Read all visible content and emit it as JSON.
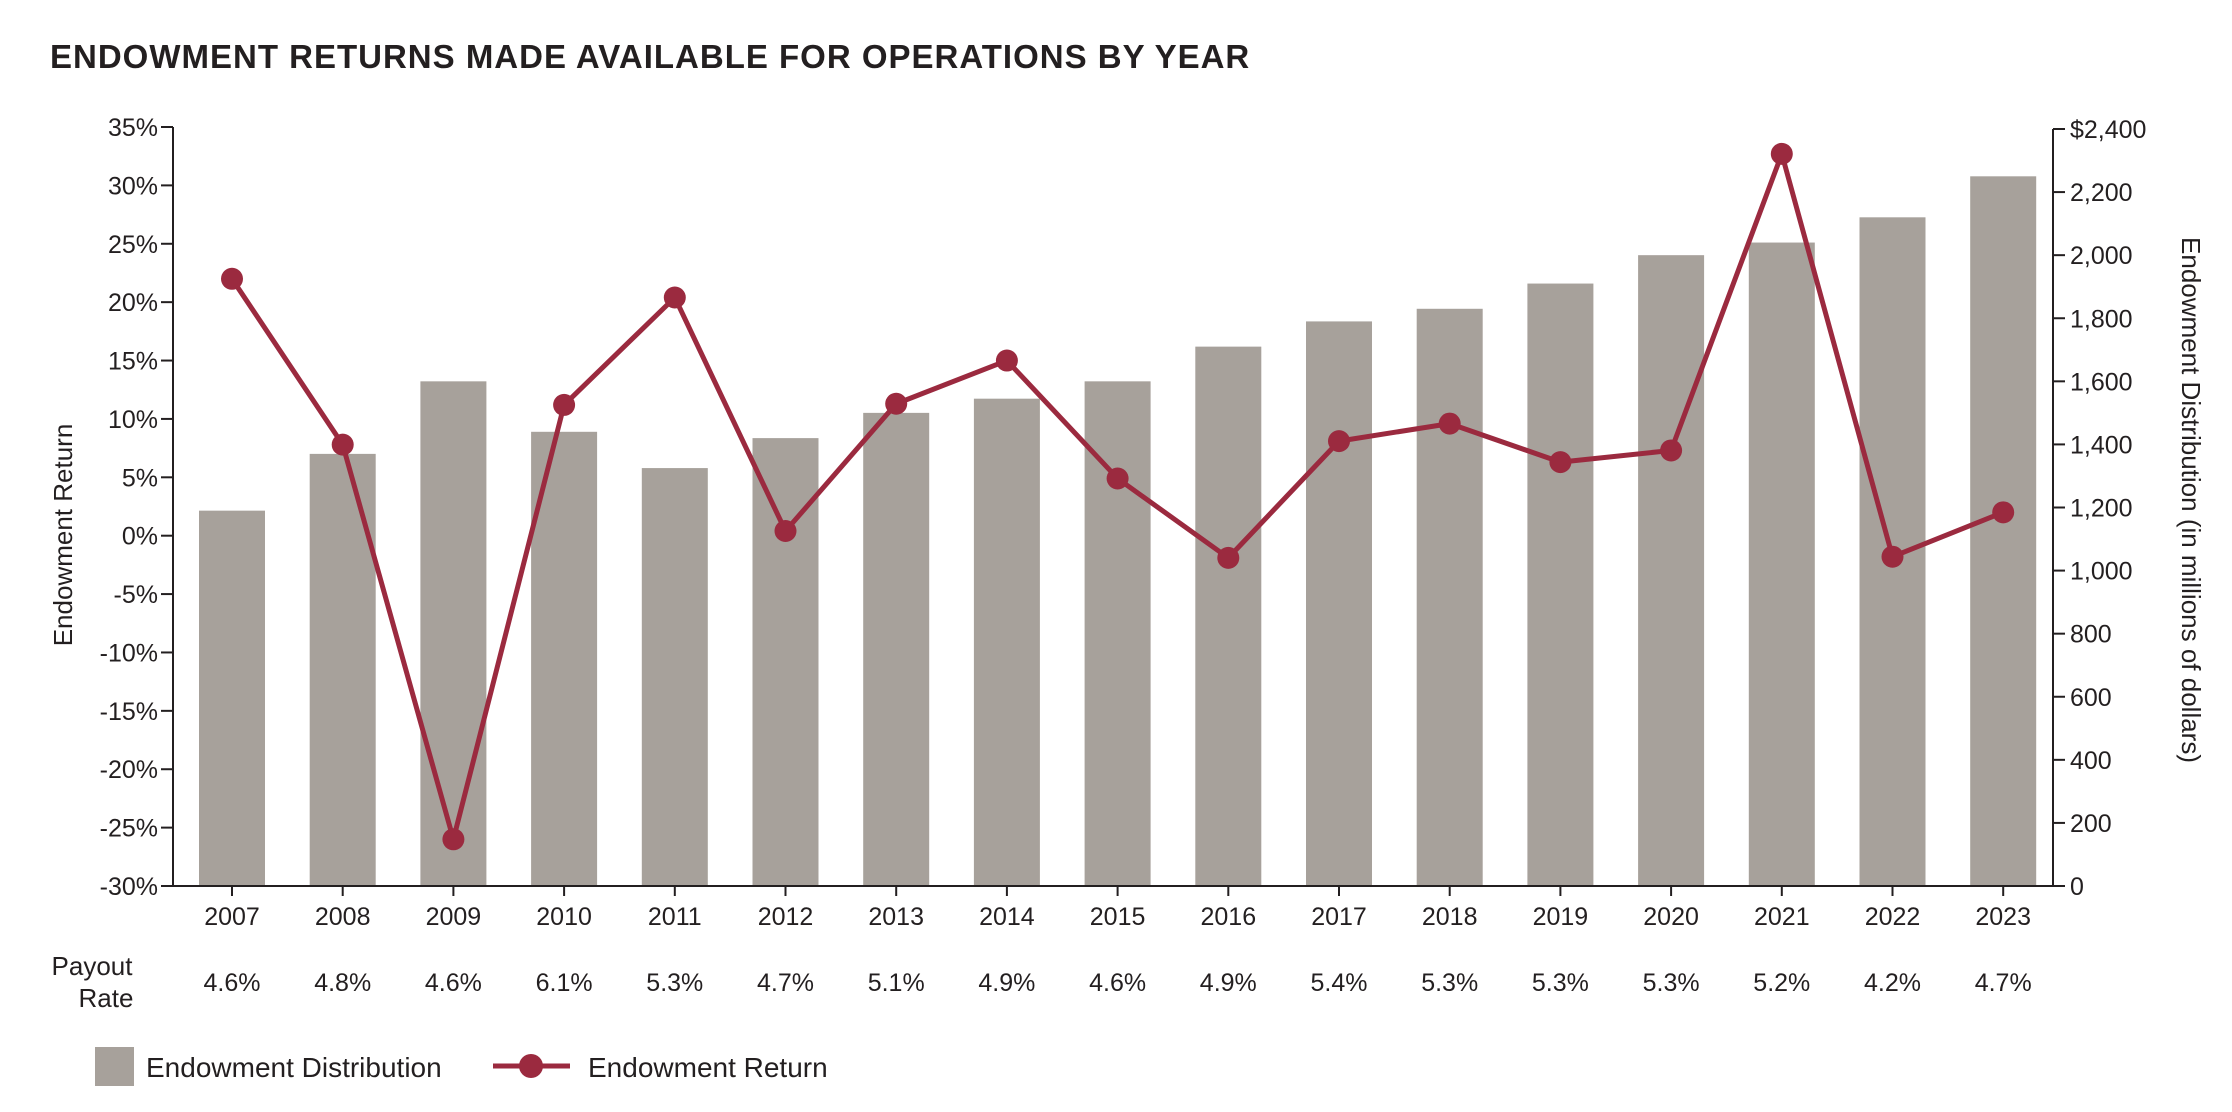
{
  "title": "ENDOWMENT RETURNS MADE AVAILABLE FOR OPERATIONS BY YEAR",
  "colors": {
    "bar": "#a7a19b",
    "line": "#9b2a3f",
    "axis": "#231f20",
    "text": "#231f20"
  },
  "chart_data": {
    "type": "bar+line",
    "categories": [
      "2007",
      "2008",
      "2009",
      "2010",
      "2011",
      "2012",
      "2013",
      "2014",
      "2015",
      "2016",
      "2017",
      "2018",
      "2019",
      "2020",
      "2021",
      "2022",
      "2023"
    ],
    "series": [
      {
        "name": "Endowment Distribution",
        "type": "bar",
        "axis": "right",
        "values": [
          1190,
          1370,
          1600,
          1440,
          1325,
          1420,
          1500,
          1545,
          1600,
          1710,
          1790,
          1830,
          1910,
          2000,
          2040,
          2120,
          2250
        ]
      },
      {
        "name": "Endowment Return",
        "type": "line",
        "axis": "left",
        "values": [
          22.0,
          7.8,
          -26.0,
          11.2,
          20.4,
          0.4,
          11.3,
          15.0,
          4.9,
          -1.9,
          8.1,
          9.6,
          6.3,
          7.3,
          32.7,
          -1.8,
          2.0
        ]
      }
    ],
    "payout_rate_label": [
      "Payout",
      "Rate"
    ],
    "payout_rates": [
      "4.6%",
      "4.8%",
      "4.6%",
      "6.1%",
      "5.3%",
      "4.7%",
      "5.1%",
      "4.9%",
      "4.6%",
      "4.9%",
      "5.4%",
      "5.3%",
      "5.3%",
      "5.3%",
      "5.2%",
      "4.2%",
      "4.7%"
    ],
    "y_left": {
      "label": "Endowment Return",
      "range": [
        -30,
        35
      ],
      "ticks": [
        "35%",
        "30%",
        "25%",
        "20%",
        "15%",
        "10%",
        "5%",
        "0%",
        "-5%",
        "-10%",
        "-15%",
        "-20%",
        "-25%",
        "-30%"
      ],
      "tick_values": [
        35,
        30,
        25,
        20,
        15,
        10,
        5,
        0,
        -5,
        -10,
        -15,
        -20,
        -25,
        -30
      ]
    },
    "y_right": {
      "label": "Endowment Distribution (in millions of dollars)",
      "range": [
        0,
        2400
      ],
      "ticks": [
        "$2,400",
        "2,200",
        "2,000",
        "1,800",
        "1,600",
        "1,400",
        "1,200",
        "1,000",
        "800",
        "600",
        "400",
        "200",
        "0"
      ],
      "tick_values": [
        2400,
        2200,
        2000,
        1800,
        1600,
        1400,
        1200,
        1000,
        800,
        600,
        400,
        200,
        0
      ]
    },
    "legend": [
      {
        "name": "Endowment Distribution",
        "type": "bar"
      },
      {
        "name": "Endowment Return",
        "type": "line"
      }
    ],
    "grid": false,
    "legend_position": "bottom-left"
  }
}
